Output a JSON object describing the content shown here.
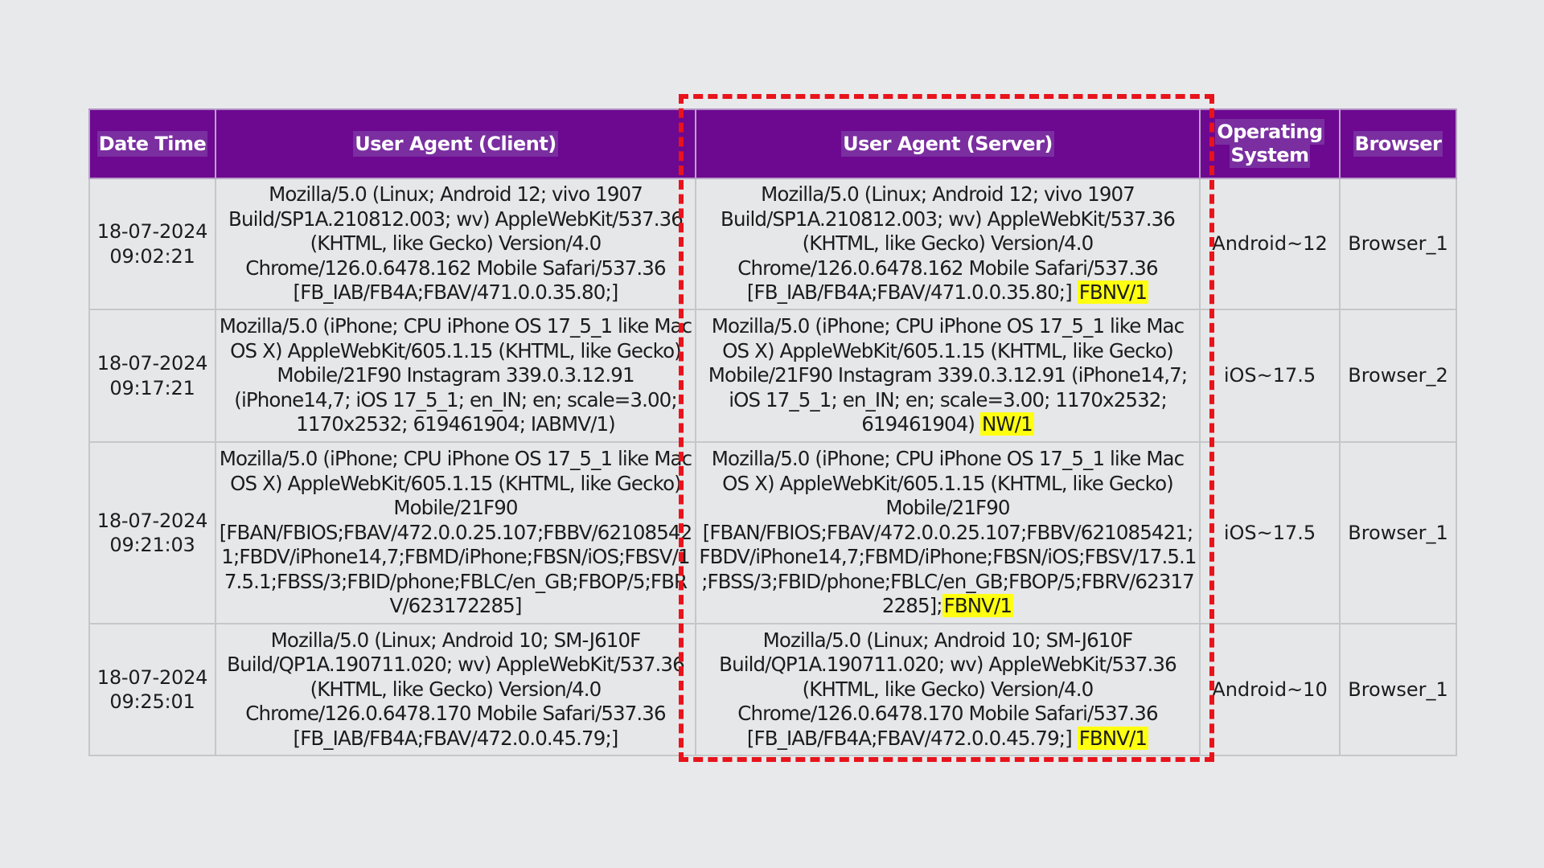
{
  "table": {
    "headers": {
      "date_time": "Date Time",
      "user_agent_client": "User Agent (Client)",
      "user_agent_server": "User Agent (Server)",
      "operating_system_line1": "Operating",
      "operating_system_line2": "System",
      "browser": "Browser"
    },
    "rows": [
      {
        "date": "18-07-2024",
        "time": "09:02:21",
        "client_ua": "Mozilla/5.0 (Linux; Android 12; vivo 1907 Build/SP1A.210812.003; wv) AppleWebKit/537.36 (KHTML, like Gecko) Version/4.0 Chrome/126.0.6478.162 Mobile Safari/537.36 [FB_IAB/FB4A;FBAV/471.0.0.35.80;]",
        "server_ua": "Mozilla/5.0 (Linux; Android 12; vivo 1907 Build/SP1A.210812.003; wv) AppleWebKit/537.36 (KHTML, like Gecko) Version/4.0 Chrome/126.0.6478.162 Mobile Safari/537.36 [FB_IAB/FB4A;FBAV/471.0.0.35.80;] ",
        "server_ua_highlight": "FBNV/1",
        "os": "Android~12",
        "browser": "Browser_1"
      },
      {
        "date": "18-07-2024",
        "time": "09:17:21",
        "client_ua": "Mozilla/5.0 (iPhone; CPU iPhone OS 17_5_1 like Mac OS X) AppleWebKit/605.1.15 (KHTML, like Gecko) Mobile/21F90 Instagram 339.0.3.12.91 (iPhone14,7; iOS 17_5_1; en_IN; en; scale=3.00; 1170x2532; 619461904; IABMV/1)",
        "server_ua": "Mozilla/5.0 (iPhone; CPU iPhone OS 17_5_1 like Mac OS X) AppleWebKit/605.1.15 (KHTML, like Gecko) Mobile/21F90 Instagram 339.0.3.12.91 (iPhone14,7; iOS 17_5_1; en_IN; en; scale=3.00; 1170x2532; 619461904) ",
        "server_ua_highlight": "NW/1",
        "os": "iOS~17.5",
        "browser": "Browser_2"
      },
      {
        "date": "18-07-2024",
        "time": "09:21:03",
        "client_ua": "Mozilla/5.0 (iPhone; CPU iPhone OS 17_5_1 like Mac OS X) AppleWebKit/605.1.15 (KHTML, like Gecko) Mobile/21F90 [FBAN/FBIOS;FBAV/472.0.0.25.107;FBBV/621085421;FBDV/iPhone14,7;FBMD/iPhone;FBSN/iOS;FBSV/17.5.1;FBSS/3;FBID/phone;FBLC/en_GB;FBOP/5;FBRV/623172285]",
        "server_ua": "Mozilla/5.0 (iPhone; CPU iPhone OS 17_5_1 like Mac OS X) AppleWebKit/605.1.15 (KHTML, like Gecko) Mobile/21F90 [FBAN/FBIOS;FBAV/472.0.0.25.107;FBBV/621085421;FBDV/iPhone14,7;FBMD/iPhone;FBSN/iOS;FBSV/17.5.1;FBSS/3;FBID/phone;FBLC/en_GB;FBOP/5;FBRV/623172285];",
        "server_ua_highlight": "FBNV/1",
        "os": "iOS~17.5",
        "browser": "Browser_1"
      },
      {
        "date": "18-07-2024",
        "time": "09:25:01",
        "client_ua": "Mozilla/5.0 (Linux; Android 10; SM-J610F Build/QP1A.190711.020; wv) AppleWebKit/537.36 (KHTML, like Gecko) Version/4.0 Chrome/126.0.6478.170 Mobile Safari/537.36 [FB_IAB/FB4A;FBAV/472.0.0.45.79;]",
        "server_ua": "Mozilla/5.0 (Linux; Android 10; SM-J610F Build/QP1A.190711.020; wv) AppleWebKit/537.36 (KHTML, like Gecko) Version/4.0 Chrome/126.0.6478.170 Mobile Safari/537.36 [FB_IAB/FB4A;FBAV/472.0.0.45.79;] ",
        "server_ua_highlight": "FBNV/1",
        "os": "Android~10",
        "browser": "Browser_1"
      }
    ]
  },
  "colors": {
    "header_bg": "#6d0891",
    "header_text": "#ffffff",
    "cell_bg": "#e6e7e9",
    "highlight": "#ffff10",
    "annotation_box": "#e8131b",
    "page_bg": "#e8e9eb"
  }
}
